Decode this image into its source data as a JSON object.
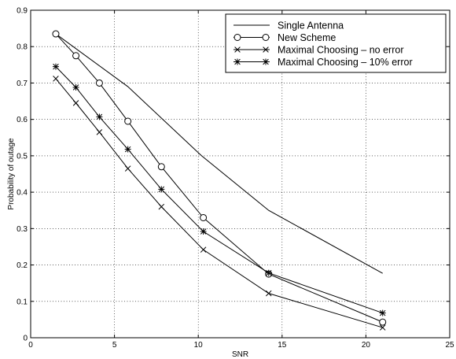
{
  "chart_data": {
    "type": "line",
    "title": "",
    "xlabel": "SNR",
    "ylabel": "Probability of outage",
    "xlim": [
      0,
      25
    ],
    "ylim": [
      0,
      0.9
    ],
    "xticks": [
      0,
      5,
      10,
      15,
      20,
      25
    ],
    "yticks": [
      0,
      0.1,
      0.2,
      0.3,
      0.4,
      0.5,
      0.6,
      0.7,
      0.8,
      0.9
    ],
    "grid": "dotted",
    "legend_position": "top-right",
    "series": [
      {
        "name": "Single Antenna",
        "marker": "none",
        "x": [
          1.5,
          5.8,
          10.2,
          14.2,
          21.0
        ],
        "y": [
          0.835,
          0.69,
          0.5,
          0.35,
          0.177
        ]
      },
      {
        "name": "New Scheme",
        "marker": "circle",
        "x": [
          1.5,
          2.7,
          4.1,
          5.8,
          7.8,
          10.3,
          14.2,
          21.0
        ],
        "y": [
          0.835,
          0.775,
          0.7,
          0.595,
          0.47,
          0.33,
          0.175,
          0.043
        ]
      },
      {
        "name": "Maximal Choosing – no error",
        "marker": "x",
        "x": [
          1.5,
          2.7,
          4.1,
          5.8,
          7.8,
          10.3,
          14.2,
          21.0
        ],
        "y": [
          0.712,
          0.645,
          0.565,
          0.465,
          0.36,
          0.242,
          0.122,
          0.028
        ]
      },
      {
        "name": "Maximal Choosing – 10% error",
        "marker": "star",
        "x": [
          1.5,
          2.7,
          4.1,
          5.8,
          7.8,
          10.3,
          14.2,
          21.0
        ],
        "y": [
          0.745,
          0.688,
          0.607,
          0.518,
          0.408,
          0.292,
          0.178,
          0.068
        ]
      }
    ]
  }
}
